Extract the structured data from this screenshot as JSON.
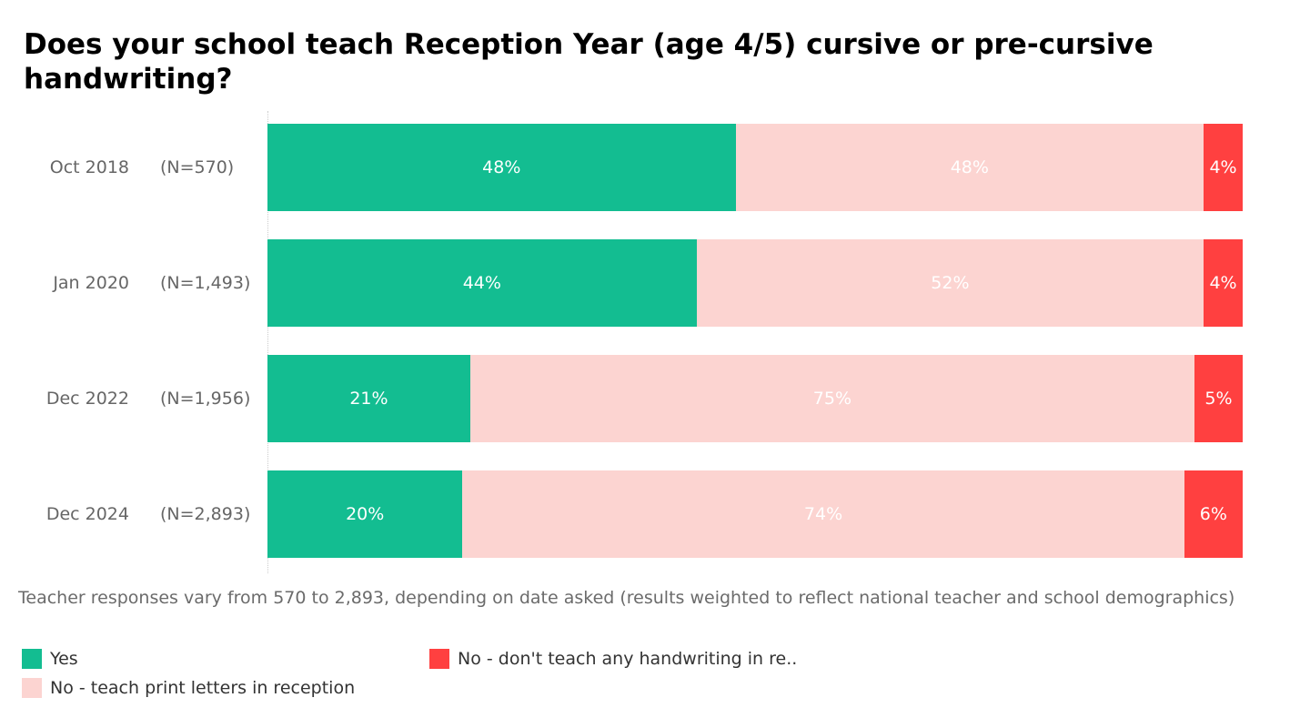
{
  "chart_data": {
    "type": "bar",
    "orientation": "horizontal",
    "stacked": true,
    "title": "Does your school teach Reception Year (age 4/5) cursive or pre-cursive handwriting?",
    "categories": [
      "Oct 2018",
      "Jan 2020",
      "Dec 2022",
      "Dec 2024"
    ],
    "sample_sizes": [
      "(N=570)",
      "(N=1,493)",
      "(N=1,956)",
      "(N=2,893)"
    ],
    "series": [
      {
        "name": "Yes",
        "color": "#13BD91",
        "values": [
          48,
          44,
          21,
          20
        ]
      },
      {
        "name": "No - teach print letters in reception",
        "color": "#FCD4D1",
        "values": [
          48,
          52,
          75,
          74
        ]
      },
      {
        "name": "No - don't teach any handwriting in re..",
        "color": "#FF4040",
        "values": [
          4,
          4,
          5,
          6
        ]
      }
    ],
    "value_suffix": "%",
    "xlim": [
      0,
      100
    ],
    "legend_position": "bottom-left",
    "footnote": "Teacher responses vary from 570 to 2,893, depending on date asked (results weighted to reflect national teacher and school demographics)"
  }
}
